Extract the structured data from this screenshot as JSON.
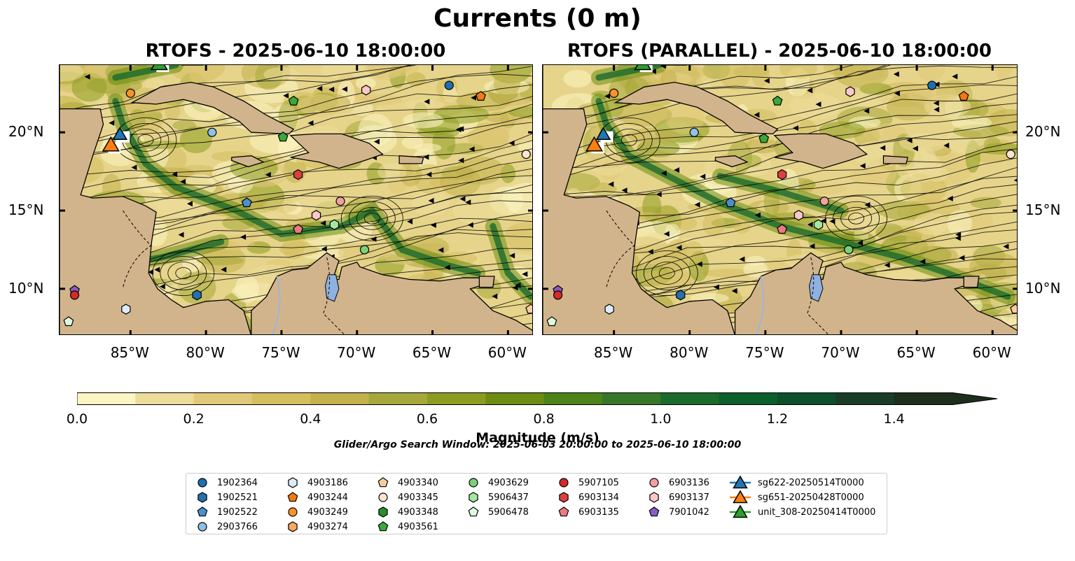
{
  "title": "Currents (0 m)",
  "panels": [
    {
      "title": "RTOFS - 2025-06-10 18:00:00"
    },
    {
      "title": "RTOFS (PARALLEL) - 2025-06-10 18:00:00"
    }
  ],
  "axes": {
    "lon_ticks": [
      "85°W",
      "80°W",
      "75°W",
      "70°W",
      "65°W",
      "60°W"
    ],
    "lat_ticks": [
      "20°N",
      "15°N",
      "10°N"
    ],
    "extent": {
      "lon": [
        -89.7,
        -58.3
      ],
      "lat": [
        7.0,
        24.3
      ]
    }
  },
  "colorbar": {
    "label": "Magnitude (m/s)",
    "ticks": [
      "0.0",
      "0.2",
      "0.4",
      "0.6",
      "0.8",
      "1.0",
      "1.2",
      "1.4"
    ],
    "range": [
      0,
      1.5
    ],
    "extend": "max",
    "colors": [
      "#fbf4c3",
      "#ecdc9a",
      "#e0c979",
      "#d4be5e",
      "#c2b14c",
      "#a6a83b",
      "#8c9c20",
      "#6c8c14",
      "#4e821a",
      "#38772a",
      "#1a6a2c",
      "#0a5f2c",
      "#0e4e2a",
      "#1a3d28",
      "#1d2e1c"
    ]
  },
  "search_window": "Glider/Argo Search Window: 2025-06-03 20:00:00 to 2025-06-10 18:00:00",
  "legend": [
    {
      "label": "1902364",
      "marker": "circle",
      "color": "#1f6fb0"
    },
    {
      "label": "1902521",
      "marker": "hexagon",
      "color": "#2670b0"
    },
    {
      "label": "1902522",
      "marker": "pentagon",
      "color": "#4a8fce"
    },
    {
      "label": "2903766",
      "marker": "circle",
      "color": "#8ec0e8"
    },
    {
      "label": "4903186",
      "marker": "hexagon",
      "color": "#dcecfa"
    },
    {
      "label": "4903244",
      "marker": "pentagon",
      "color": "#f07a10"
    },
    {
      "label": "4903249",
      "marker": "circle",
      "color": "#f7932a"
    },
    {
      "label": "4903274",
      "marker": "hexagon",
      "color": "#f8a860"
    },
    {
      "label": "4903340",
      "marker": "pentagon",
      "color": "#f7cca0"
    },
    {
      "label": "4903345",
      "marker": "circle",
      "color": "#fde4cc"
    },
    {
      "label": "4903348",
      "marker": "hexagon",
      "color": "#2a8e2a"
    },
    {
      "label": "4903561",
      "marker": "pentagon",
      "color": "#3aa83a"
    },
    {
      "label": "4903629",
      "marker": "circle",
      "color": "#7cd07c"
    },
    {
      "label": "5906437",
      "marker": "hexagon",
      "color": "#a6e6a0"
    },
    {
      "label": "5906478",
      "marker": "pentagon",
      "color": "#dff8df"
    },
    {
      "label": "5907105",
      "marker": "circle",
      "color": "#d42a2a"
    },
    {
      "label": "6903134",
      "marker": "hexagon",
      "color": "#dd4040"
    },
    {
      "label": "6903135",
      "marker": "pentagon",
      "color": "#ee7a80"
    },
    {
      "label": "6903136",
      "marker": "circle",
      "color": "#f4a0a0"
    },
    {
      "label": "6903137",
      "marker": "hexagon",
      "color": "#f9c8c8"
    },
    {
      "label": "7901042",
      "marker": "pentagon",
      "color": "#8a5cc0"
    },
    {
      "label": "sg622-20250514T0000",
      "marker": "triangle",
      "color": "#1f77b4"
    },
    {
      "label": "sg651-20250428T0000",
      "marker": "triangle",
      "color": "#ff7f0e"
    },
    {
      "label": "unit_308-20250414T0000",
      "marker": "triangle",
      "color": "#2ca02c"
    }
  ],
  "floats": {
    "rtofs": [
      {
        "id": "1902364",
        "lon": -63.9,
        "lat": 23.0
      },
      {
        "id": "4903244",
        "lon": -61.8,
        "lat": 22.3
      },
      {
        "id": "4903345",
        "lon": -58.8,
        "lat": 18.6
      },
      {
        "id": "4903340",
        "lon": -58.5,
        "lat": 8.7
      },
      {
        "id": "4903249",
        "lon": -85.0,
        "lat": 22.5
      },
      {
        "id": "4903561",
        "lon": -74.2,
        "lat": 22.0
      },
      {
        "id": "6903137",
        "lon": -69.4,
        "lat": 22.7
      },
      {
        "id": "2903766",
        "lon": -79.6,
        "lat": 20.0
      },
      {
        "id": "4903561",
        "lon": -74.9,
        "lat": 19.7
      },
      {
        "id": "6903134",
        "lon": -73.9,
        "lat": 17.3
      },
      {
        "id": "1902522",
        "lon": -77.3,
        "lat": 15.5
      },
      {
        "id": "6903137",
        "lon": -72.7,
        "lat": 14.7
      },
      {
        "id": "6903136",
        "lon": -71.1,
        "lat": 15.6
      },
      {
        "id": "5906437",
        "lon": -71.5,
        "lat": 14.1
      },
      {
        "id": "6903135",
        "lon": -73.9,
        "lat": 13.8
      },
      {
        "id": "4903629",
        "lon": -69.5,
        "lat": 12.5
      },
      {
        "id": "1902521",
        "lon": -80.6,
        "lat": 9.6
      },
      {
        "id": "7901042",
        "lon": -88.7,
        "lat": 9.9
      },
      {
        "id": "5907105",
        "lon": -88.7,
        "lat": 9.6
      },
      {
        "id": "4903186",
        "lon": -85.3,
        "lat": 8.7
      },
      {
        "id": "5906478",
        "lon": -89.1,
        "lat": 7.9
      }
    ],
    "parallel": [
      {
        "id": "1902364",
        "lon": -64.0,
        "lat": 23.0
      },
      {
        "id": "4903244",
        "lon": -61.9,
        "lat": 22.3
      },
      {
        "id": "4903345",
        "lon": -58.8,
        "lat": 18.6
      },
      {
        "id": "4903340",
        "lon": -58.5,
        "lat": 8.7
      },
      {
        "id": "4903249",
        "lon": -85.0,
        "lat": 22.5
      },
      {
        "id": "4903561",
        "lon": -74.2,
        "lat": 22.0
      },
      {
        "id": "6903137",
        "lon": -69.4,
        "lat": 22.6
      },
      {
        "id": "2903766",
        "lon": -79.7,
        "lat": 20.0
      },
      {
        "id": "4903561",
        "lon": -75.1,
        "lat": 19.6
      },
      {
        "id": "6903134",
        "lon": -73.9,
        "lat": 17.3
      },
      {
        "id": "1902522",
        "lon": -77.3,
        "lat": 15.5
      },
      {
        "id": "6903137",
        "lon": -72.8,
        "lat": 14.7
      },
      {
        "id": "6903136",
        "lon": -71.1,
        "lat": 15.6
      },
      {
        "id": "5906437",
        "lon": -71.5,
        "lat": 14.1
      },
      {
        "id": "6903135",
        "lon": -73.9,
        "lat": 13.8
      },
      {
        "id": "4903629",
        "lon": -69.5,
        "lat": 12.5
      },
      {
        "id": "1902521",
        "lon": -80.6,
        "lat": 9.6
      },
      {
        "id": "7901042",
        "lon": -88.7,
        "lat": 9.9
      },
      {
        "id": "5907105",
        "lon": -88.7,
        "lat": 9.6
      },
      {
        "id": "4903186",
        "lon": -85.3,
        "lat": 8.7
      },
      {
        "id": "5906478",
        "lon": -89.1,
        "lat": 7.9
      }
    ],
    "gliders": [
      {
        "id": "sg622-20250514T0000",
        "lon": -85.7,
        "lat": 19.8
      },
      {
        "id": "sg651-20250428T0000",
        "lon": -86.3,
        "lat": 19.1
      },
      {
        "id": "unit_308-20250414T0000",
        "lon": -83.1,
        "lat": 24.3
      }
    ]
  }
}
